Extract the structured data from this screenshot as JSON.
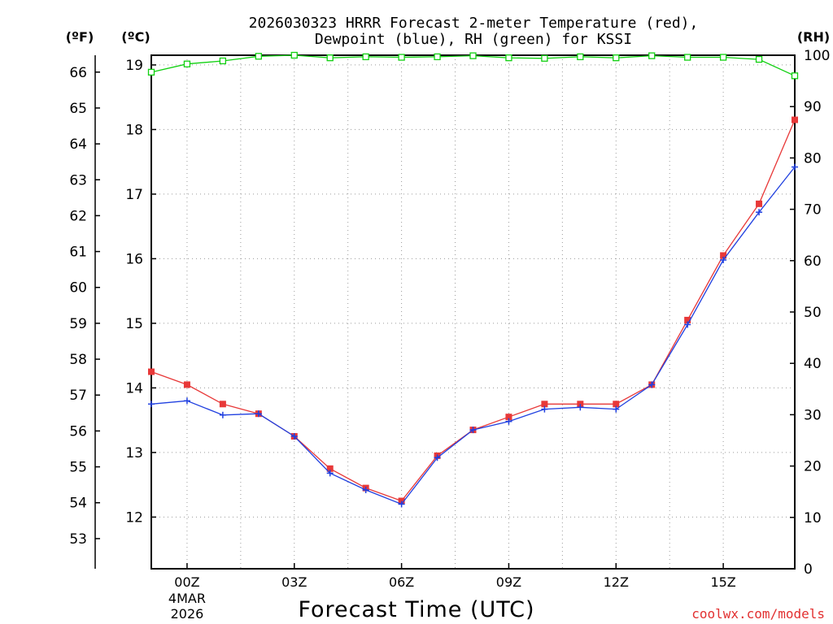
{
  "chart_data": {
    "type": "line",
    "title_line1": "2026030323 HRRR Forecast 2-meter Temperature (red),",
    "title_line2": "Dewpoint (blue), RH (green) for KSSI",
    "xlabel": "Forecast Time (UTC)",
    "credit": "coolwx.com/models",
    "unit_f": "(ºF)",
    "unit_c": "(ºC)",
    "unit_rh": "(RH)",
    "x": [
      -1,
      0,
      1,
      2,
      3,
      4,
      5,
      6,
      7,
      8,
      9,
      10,
      11,
      12,
      13,
      14,
      15,
      16,
      17
    ],
    "x_range": [
      -1,
      17
    ],
    "x_ticks": [
      {
        "x": 0,
        "label": "00Z",
        "date": "4MAR",
        "year": "2026"
      },
      {
        "x": 3,
        "label": "03Z"
      },
      {
        "x": 6,
        "label": "06Z"
      },
      {
        "x": 9,
        "label": "09Z"
      },
      {
        "x": 12,
        "label": "12Z"
      },
      {
        "x": 15,
        "label": "15Z"
      }
    ],
    "ylim_c": [
      11.2,
      19.15
    ],
    "yticks_c": [
      12,
      13,
      14,
      15,
      16,
      17,
      18,
      19
    ],
    "yticks_f": [
      53,
      54,
      55,
      56,
      57,
      58,
      59,
      60,
      61,
      62,
      63,
      64,
      65,
      66
    ],
    "ylim_rh": [
      0,
      100
    ],
    "yticks_rh": [
      0,
      10,
      20,
      30,
      40,
      50,
      60,
      70,
      80,
      90,
      100
    ],
    "series": [
      {
        "name": "Temperature",
        "axis": "C",
        "color": "#e83838",
        "marker": "square",
        "values": [
          14.25,
          14.05,
          13.75,
          13.6,
          13.25,
          12.75,
          12.45,
          12.25,
          12.95,
          13.35,
          13.55,
          13.75,
          13.75,
          13.75,
          14.05,
          15.05,
          16.05,
          16.85,
          18.15
        ]
      },
      {
        "name": "Dewpoint",
        "axis": "C",
        "color": "#2040e0",
        "marker": "plus",
        "values": [
          13.75,
          13.8,
          13.58,
          13.6,
          13.25,
          12.68,
          12.42,
          12.2,
          12.92,
          13.35,
          13.48,
          13.67,
          13.7,
          13.67,
          14.05,
          14.98,
          15.98,
          16.72,
          17.42
        ]
      },
      {
        "name": "RH",
        "axis": "RH",
        "color": "#10d010",
        "marker": "open-square",
        "values": [
          96.7,
          98.3,
          98.9,
          99.8,
          100.0,
          99.5,
          99.7,
          99.6,
          99.7,
          99.9,
          99.5,
          99.4,
          99.7,
          99.5,
          99.9,
          99.6,
          99.6,
          99.2,
          96.0
        ]
      }
    ]
  }
}
